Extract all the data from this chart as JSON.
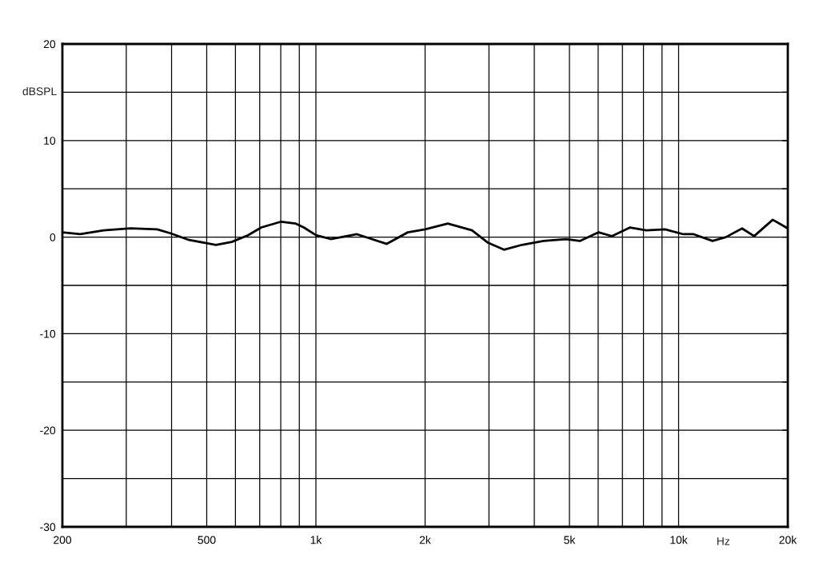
{
  "chart_data": {
    "type": "line",
    "xlabel": "Hz",
    "ylabel": "dBSPL",
    "log": "x",
    "x": [
      200,
      224,
      260,
      308,
      365,
      397,
      447,
      530,
      586,
      650,
      707,
      802,
      880,
      926,
      1000,
      1098,
      1298,
      1568,
      1793,
      2000,
      2310,
      2694,
      2986,
      3300,
      3700,
      4240,
      4900,
      5340,
      6020,
      6540,
      7350,
      8140,
      9180,
      10300,
      11000,
      12400,
      13500,
      14960,
      16150,
      18180,
      20000
    ],
    "series": [
      {
        "color": "#000000",
        "line_style": "solid",
        "values": [
          0.5,
          0.3,
          0.7,
          0.9,
          0.8,
          0.4,
          -0.3,
          -0.8,
          -0.5,
          0.2,
          1.0,
          1.6,
          1.4,
          1.0,
          0.2,
          -0.2,
          0.3,
          -0.7,
          0.5,
          0.8,
          1.4,
          0.7,
          -0.6,
          -1.3,
          -0.8,
          -0.4,
          -0.2,
          -0.4,
          0.5,
          0.1,
          1.0,
          0.7,
          0.8,
          0.3,
          0.3,
          -0.4,
          0.0,
          0.9,
          0.1,
          1.8,
          0.9
        ]
      }
    ],
    "xlim": [
      200,
      20000
    ],
    "ylim": [
      -30,
      20
    ],
    "xticks": [
      200,
      {
        "value": 300,
        "label": null
      },
      {
        "value": 400,
        "label": null
      },
      500,
      {
        "value": 600,
        "label": null
      },
      {
        "value": 700,
        "label": null
      },
      {
        "value": 800,
        "label": null
      },
      {
        "value": 900,
        "label": null
      },
      {
        "value": 1000,
        "label": "1k"
      },
      {
        "value": 2000,
        "label": "2k"
      },
      {
        "value": 3000,
        "label": null
      },
      {
        "value": 4000,
        "label": null
      },
      {
        "value": 5000,
        "label": "5k"
      },
      {
        "value": 6000,
        "label": null
      },
      {
        "value": 7000,
        "label": null
      },
      {
        "value": 8000,
        "label": null
      },
      {
        "value": 9000,
        "label": null
      },
      {
        "value": 10000,
        "label": "10k"
      },
      {
        "value": 20000,
        "label": "20k"
      }
    ],
    "yticks": [
      -30,
      {
        "value": -25,
        "label": null
      },
      -20,
      {
        "value": -15,
        "label": null
      },
      -10,
      {
        "value": -5,
        "label": null
      },
      0,
      {
        "value": 5,
        "label": null
      },
      10,
      {
        "value": 15,
        "label": null
      },
      20
    ],
    "grid": true
  }
}
